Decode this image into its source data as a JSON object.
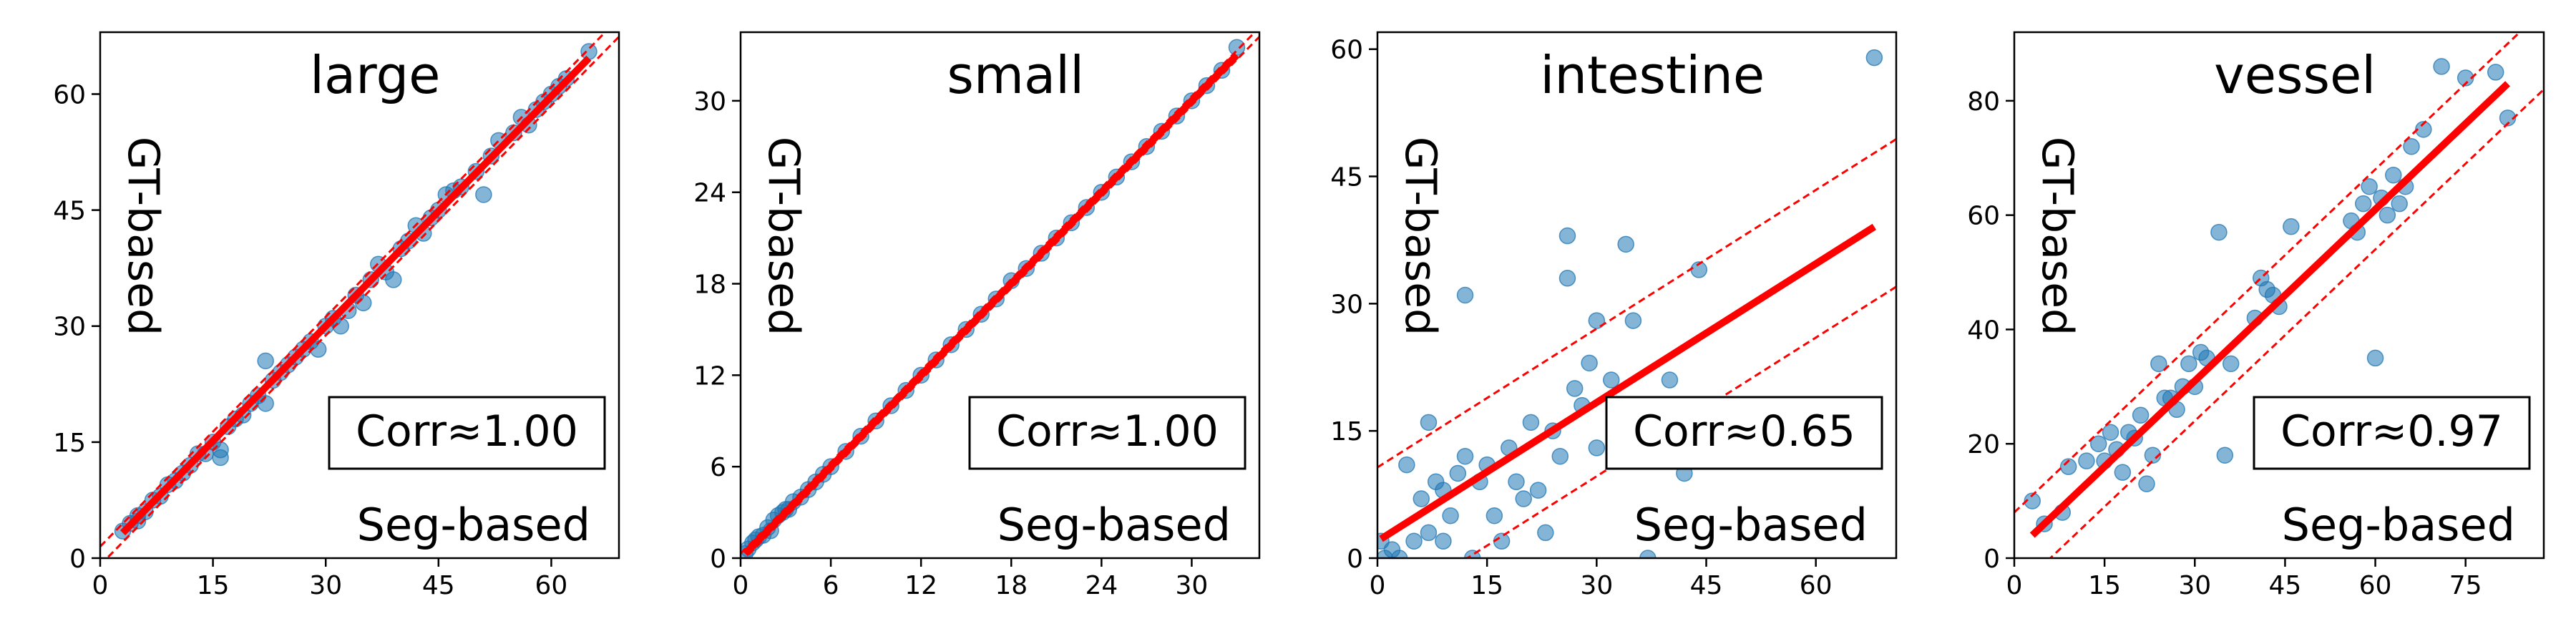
{
  "chart_data": [
    {
      "type": "scatter",
      "title": "large",
      "xlabel": "Seg-based",
      "ylabel": "GT-based",
      "annotation": "Corr≈1.00",
      "xlim": [
        0,
        69
      ],
      "ylim": [
        0,
        68
      ],
      "xticks": [
        0,
        15,
        30,
        45,
        60
      ],
      "yticks": [
        0,
        15,
        30,
        45,
        60
      ],
      "fit": {
        "slope": 0.99,
        "intercept": 0.3,
        "band": 1.2
      },
      "points": [
        [
          3,
          3.5
        ],
        [
          4,
          4.5
        ],
        [
          5,
          5.5
        ],
        [
          5,
          4.8
        ],
        [
          6,
          6
        ],
        [
          7,
          7.5
        ],
        [
          8,
          8
        ],
        [
          9,
          9.5
        ],
        [
          10,
          10
        ],
        [
          11,
          11
        ],
        [
          12,
          12
        ],
        [
          13,
          13.5
        ],
        [
          14,
          13.5
        ],
        [
          15,
          15
        ],
        [
          16,
          14
        ],
        [
          16,
          13
        ],
        [
          17,
          17
        ],
        [
          18,
          18
        ],
        [
          19,
          18.5
        ],
        [
          20,
          20
        ],
        [
          21,
          21
        ],
        [
          22,
          25.5
        ],
        [
          22,
          20
        ],
        [
          23,
          23
        ],
        [
          24,
          24
        ],
        [
          25,
          25
        ],
        [
          26,
          26
        ],
        [
          27,
          27
        ],
        [
          28,
          28
        ],
        [
          29,
          27
        ],
        [
          30,
          30
        ],
        [
          31,
          31
        ],
        [
          32,
          30
        ],
        [
          33,
          32
        ],
        [
          34,
          34
        ],
        [
          35,
          33
        ],
        [
          36,
          36
        ],
        [
          37,
          38
        ],
        [
          38,
          37
        ],
        [
          39,
          36
        ],
        [
          40,
          40
        ],
        [
          41,
          41
        ],
        [
          42,
          43
        ],
        [
          43,
          42
        ],
        [
          44,
          44
        ],
        [
          45,
          45
        ],
        [
          46,
          47
        ],
        [
          47,
          47.5
        ],
        [
          48,
          48
        ],
        [
          50,
          50
        ],
        [
          51,
          47
        ],
        [
          52,
          52
        ],
        [
          53,
          54
        ],
        [
          55,
          55
        ],
        [
          56,
          57
        ],
        [
          57,
          56
        ],
        [
          58,
          58
        ],
        [
          59,
          59
        ],
        [
          60,
          60
        ],
        [
          61,
          61
        ],
        [
          62,
          62
        ],
        [
          65,
          65.5
        ]
      ]
    },
    {
      "type": "scatter",
      "title": "small",
      "xlabel": "Seg-based",
      "ylabel": "GT-based",
      "annotation": "Corr≈1.00",
      "xlim": [
        0,
        34.5
      ],
      "ylim": [
        0,
        34.5
      ],
      "xticks": [
        0,
        6,
        12,
        18,
        24,
        30
      ],
      "yticks": [
        0,
        6,
        12,
        18,
        24,
        30
      ],
      "fit": {
        "slope": 1.0,
        "intercept": 0.0,
        "band": 0.3
      },
      "points": [
        [
          0.3,
          0.3
        ],
        [
          0.5,
          0.6
        ],
        [
          0.8,
          1
        ],
        [
          1,
          1.2
        ],
        [
          1.2,
          1.4
        ],
        [
          1.5,
          1.5
        ],
        [
          1.8,
          2
        ],
        [
          2,
          1.8
        ],
        [
          2.2,
          2.5
        ],
        [
          2.5,
          2.8
        ],
        [
          2.8,
          3
        ],
        [
          3,
          3.2
        ],
        [
          3.2,
          3.2
        ],
        [
          3.5,
          3.7
        ],
        [
          4,
          4
        ],
        [
          4.5,
          4.5
        ],
        [
          5,
          5
        ],
        [
          5.5,
          5.5
        ],
        [
          6,
          6
        ],
        [
          7,
          7
        ],
        [
          8,
          8
        ],
        [
          9,
          9
        ],
        [
          10,
          10
        ],
        [
          11,
          11
        ],
        [
          12,
          12
        ],
        [
          13,
          13
        ],
        [
          14,
          14
        ],
        [
          15,
          15
        ],
        [
          16,
          16
        ],
        [
          17,
          17
        ],
        [
          18,
          18.2
        ],
        [
          19,
          19
        ],
        [
          20,
          20
        ],
        [
          21,
          21
        ],
        [
          22,
          22
        ],
        [
          23,
          23
        ],
        [
          24,
          24
        ],
        [
          25,
          25
        ],
        [
          26,
          26
        ],
        [
          27,
          27
        ],
        [
          28,
          28
        ],
        [
          29,
          29
        ],
        [
          30,
          30
        ],
        [
          31,
          31
        ],
        [
          32,
          32
        ],
        [
          33,
          33.5
        ]
      ]
    },
    {
      "type": "scatter",
      "title": "intestine",
      "xlabel": "Seg-based",
      "ylabel": "GT-based",
      "annotation": "Corr≈0.65",
      "xlim": [
        0,
        71
      ],
      "ylim": [
        0,
        62
      ],
      "xticks": [
        0,
        15,
        30,
        45,
        60
      ],
      "yticks": [
        0,
        15,
        30,
        45,
        60
      ],
      "fit": {
        "slope": 0.545,
        "intercept": 2.0,
        "band": 8.7
      },
      "points": [
        [
          0.5,
          2
        ],
        [
          1,
          0
        ],
        [
          2,
          1
        ],
        [
          3,
          0
        ],
        [
          4,
          11
        ],
        [
          5,
          2
        ],
        [
          6,
          7
        ],
        [
          7,
          16
        ],
        [
          7,
          3
        ],
        [
          8,
          9
        ],
        [
          9,
          8
        ],
        [
          9,
          2
        ],
        [
          10,
          5
        ],
        [
          11,
          10
        ],
        [
          12,
          12
        ],
        [
          12,
          31
        ],
        [
          13,
          0
        ],
        [
          14,
          9
        ],
        [
          15,
          11
        ],
        [
          16,
          5
        ],
        [
          17,
          2
        ],
        [
          18,
          13
        ],
        [
          19,
          9
        ],
        [
          20,
          7
        ],
        [
          21,
          16
        ],
        [
          22,
          8
        ],
        [
          23,
          3
        ],
        [
          24,
          15
        ],
        [
          25,
          12
        ],
        [
          26,
          38
        ],
        [
          26,
          33
        ],
        [
          27,
          20
        ],
        [
          28,
          18
        ],
        [
          29,
          23
        ],
        [
          30,
          28
        ],
        [
          30,
          13
        ],
        [
          32,
          21
        ],
        [
          33,
          13
        ],
        [
          34,
          37
        ],
        [
          35,
          28
        ],
        [
          36,
          18
        ],
        [
          37,
          0
        ],
        [
          40,
          21
        ],
        [
          42,
          10
        ],
        [
          44,
          34
        ],
        [
          68,
          59
        ]
      ]
    },
    {
      "type": "scatter",
      "title": "vessel",
      "xlabel": "Seg-based",
      "ylabel": "GT-based",
      "annotation": "Corr≈0.97",
      "xlim": [
        0,
        88
      ],
      "ylim": [
        0,
        92
      ],
      "xticks": [
        0,
        15,
        30,
        45,
        60,
        75
      ],
      "yticks": [
        0,
        20,
        40,
        60,
        80
      ],
      "fit": {
        "slope": 1.0,
        "intercept": 1.0,
        "band": 7.0
      },
      "points": [
        [
          3,
          10
        ],
        [
          5,
          6
        ],
        [
          8,
          8
        ],
        [
          9,
          16
        ],
        [
          12,
          17
        ],
        [
          14,
          20
        ],
        [
          15,
          17
        ],
        [
          16,
          22
        ],
        [
          17,
          19
        ],
        [
          18,
          15
        ],
        [
          19,
          22
        ],
        [
          20,
          21
        ],
        [
          21,
          25
        ],
        [
          22,
          13
        ],
        [
          23,
          18
        ],
        [
          24,
          34
        ],
        [
          25,
          28
        ],
        [
          26,
          28
        ],
        [
          27,
          26
        ],
        [
          28,
          30
        ],
        [
          29,
          34
        ],
        [
          30,
          30
        ],
        [
          31,
          36
        ],
        [
          32,
          35
        ],
        [
          34,
          57
        ],
        [
          35,
          18
        ],
        [
          36,
          34
        ],
        [
          40,
          42
        ],
        [
          41,
          49
        ],
        [
          42,
          47
        ],
        [
          43,
          46
        ],
        [
          44,
          44
        ],
        [
          46,
          58
        ],
        [
          56,
          59
        ],
        [
          57,
          57
        ],
        [
          58,
          62
        ],
        [
          59,
          65
        ],
        [
          60,
          35
        ],
        [
          61,
          63
        ],
        [
          62,
          60
        ],
        [
          63,
          67
        ],
        [
          64,
          62
        ],
        [
          65,
          65
        ],
        [
          66,
          72
        ],
        [
          68,
          75
        ],
        [
          71,
          86
        ],
        [
          75,
          84
        ],
        [
          80,
          85
        ],
        [
          82,
          77
        ]
      ]
    }
  ]
}
